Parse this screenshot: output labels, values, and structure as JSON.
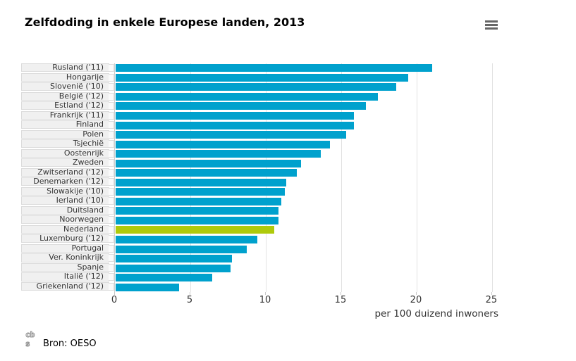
{
  "header": {
    "title": "Zelfdoding in enkele Europese landen, 2013",
    "menu_icon": "hamburger-menu"
  },
  "chart_data": {
    "type": "bar",
    "orientation": "horizontal",
    "title": "Zelfdoding in enkele Europese landen, 2013",
    "xlabel": "per 100 duizend inwoners",
    "ylabel": "",
    "x_ticks": [
      0,
      5,
      10,
      15,
      20,
      25
    ],
    "xlim": [
      0,
      27.76
    ],
    "grid": true,
    "categories": [
      "Rusland ('11)",
      "Hongarije",
      "Slovenië ('10)",
      "België ('12)",
      "Estland ('12)",
      "Frankrijk ('11)",
      "Finland",
      "Polen",
      "Tsjechië",
      "Oostenrijk",
      "Zweden",
      "Zwitserland ('12)",
      "Denemarken ('12)",
      "Slowakije ('10)",
      "Ierland ('10)",
      "Duitsland",
      "Noorwegen",
      "Nederland",
      "Luxemburg ('12)",
      "Portugal",
      "Ver. Koninkrijk",
      "Spanje",
      "Italië ('12)",
      "Griekenland ('12)"
    ],
    "values": [
      21.0,
      19.4,
      18.6,
      17.4,
      16.6,
      15.8,
      15.8,
      15.3,
      14.2,
      13.6,
      12.3,
      12.0,
      11.3,
      11.2,
      11.0,
      10.8,
      10.8,
      10.5,
      9.4,
      8.7,
      7.7,
      7.6,
      6.4,
      4.2
    ],
    "highlight_category": "Nederland",
    "colors": {
      "bar": "#00a1cd",
      "highlight": "#afca0b",
      "grid": "#e2e2e2",
      "label_cell_bg": "#f0f0f0",
      "label_cell_border": "#dcdcdc"
    }
  },
  "footer": {
    "source_label": "Bron: OESO",
    "logo": "cbs-logo",
    "logo_text_top": "cb",
    "logo_text_bottom": "s"
  }
}
